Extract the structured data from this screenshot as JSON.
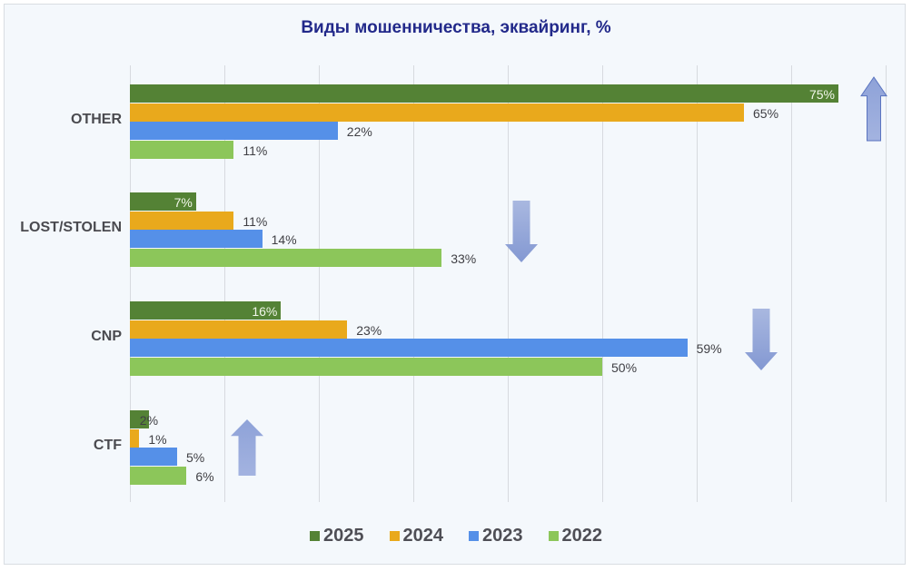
{
  "chart_data": {
    "type": "bar",
    "orientation": "horizontal",
    "title": "Виды мошенничества, эквайринг, %",
    "xlabel": "",
    "ylabel": "",
    "xlim": [
      0,
      80
    ],
    "grid": true,
    "legend_position": "bottom",
    "categories": [
      "OTHER",
      "LOST/STOLEN",
      "CNP",
      "CTF"
    ],
    "series": [
      {
        "name": "2025",
        "color": "#548235",
        "values": [
          75,
          7,
          16,
          2
        ],
        "labels": [
          "75%",
          "7%",
          "16%",
          "2%"
        ]
      },
      {
        "name": "2024",
        "color": "#e9a91c",
        "values": [
          65,
          11,
          23,
          1
        ],
        "labels": [
          "65%",
          "11%",
          "23%",
          "1%"
        ]
      },
      {
        "name": "2023",
        "color": "#5590e8",
        "values": [
          22,
          14,
          59,
          5
        ],
        "labels": [
          "22%",
          "14%",
          "59%",
          "5%"
        ]
      },
      {
        "name": "2022",
        "color": "#8cc65a",
        "values": [
          11,
          33,
          50,
          6
        ],
        "labels": [
          "11%",
          "33%",
          "50%",
          "6%"
        ]
      }
    ],
    "annotations": [
      {
        "type": "arrow",
        "direction": "up",
        "category": "OTHER"
      },
      {
        "type": "arrow",
        "direction": "down",
        "category": "LOST/STOLEN"
      },
      {
        "type": "arrow",
        "direction": "down",
        "category": "CNP"
      },
      {
        "type": "arrow",
        "direction": "up",
        "category": "CTF"
      }
    ]
  },
  "legend": [
    {
      "label": "2025",
      "color": "#548235"
    },
    {
      "label": "2024",
      "color": "#e9a91c"
    },
    {
      "label": "2023",
      "color": "#5590e8"
    },
    {
      "label": "2022",
      "color": "#8cc65a"
    }
  ]
}
